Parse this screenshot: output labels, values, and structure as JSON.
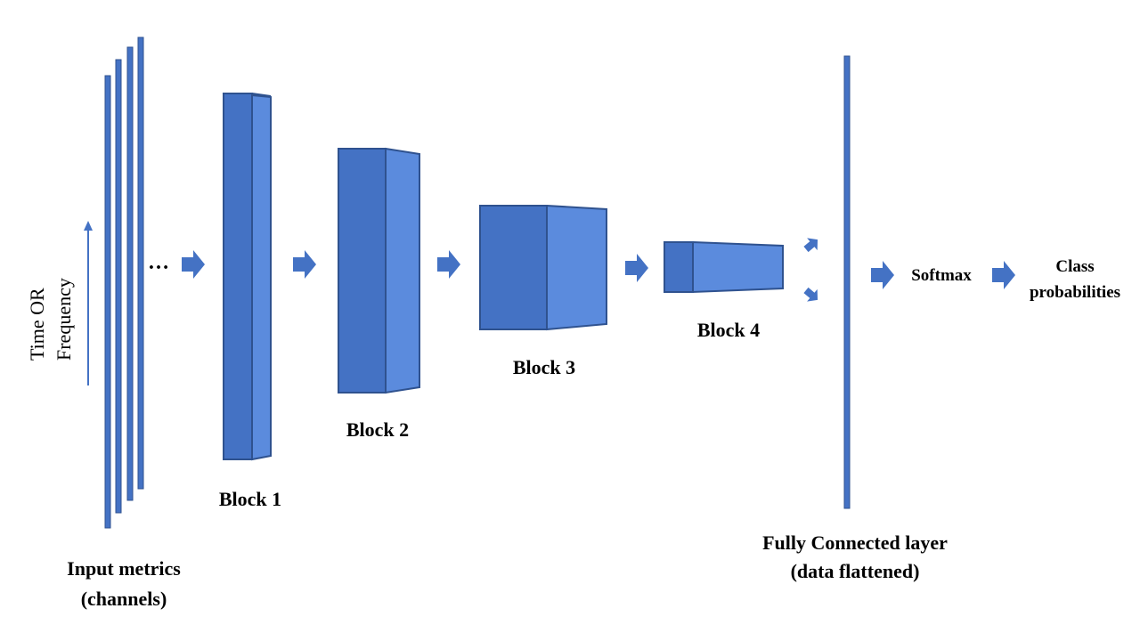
{
  "axis": {
    "line1": "Time  OR",
    "line2": "Frequency"
  },
  "input": {
    "ellipsis": "…",
    "label_line1": "Input metrics",
    "label_line2": "(channels)"
  },
  "blocks": [
    {
      "label": "Block 1"
    },
    {
      "label": "Block 2"
    },
    {
      "label": "Block 3"
    },
    {
      "label": "Block 4"
    }
  ],
  "fc": {
    "label_line1": "Fully Connected layer",
    "label_line2": "(data flattened)"
  },
  "softmax": {
    "label": "Softmax"
  },
  "output": {
    "label_line1": "Class",
    "label_line2": "probabilities"
  },
  "colors": {
    "front": "#4472C4",
    "side": "#5B8BDD",
    "edge": "#2F528F",
    "arrow": "#4472C4"
  }
}
